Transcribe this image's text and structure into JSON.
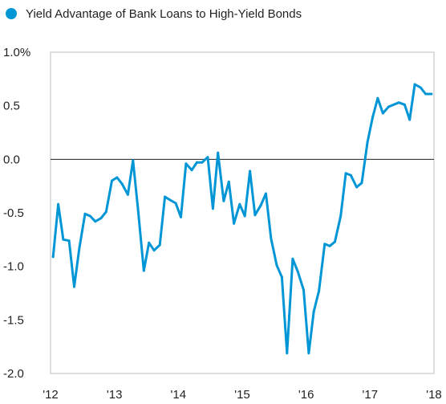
{
  "chart_data": {
    "type": "line",
    "legend": {
      "label": "Yield Advantage of Bank Loans to High-Yield Bonds",
      "color": "#0096d6",
      "placement": "top-left"
    },
    "x_ticks": [
      "'12",
      "'13",
      "'14",
      "'15",
      "'16",
      "'17",
      "'18"
    ],
    "y_ticks": [
      "1.0%",
      "0.5",
      "0.0",
      "-0.5",
      "-1.0",
      "-1.5",
      "-2.0"
    ],
    "ylim": [
      -2.0,
      1.0
    ],
    "xlim": [
      2012,
      2018
    ],
    "zero_line": true,
    "grid": false,
    "series": [
      {
        "name": "Yield Advantage of Bank Loans to High-Yield Bonds",
        "color": "#0096d6",
        "x": [
          2012.04,
          2012.12,
          2012.2,
          2012.29,
          2012.37,
          2012.45,
          2012.54,
          2012.62,
          2012.7,
          2012.79,
          2012.87,
          2012.96,
          2013.04,
          2013.12,
          2013.21,
          2013.29,
          2013.37,
          2013.46,
          2013.54,
          2013.62,
          2013.71,
          2013.79,
          2013.87,
          2013.96,
          2014.04,
          2014.12,
          2014.21,
          2014.29,
          2014.37,
          2014.46,
          2014.54,
          2014.62,
          2014.71,
          2014.79,
          2014.87,
          2014.96,
          2015.04,
          2015.12,
          2015.2,
          2015.29,
          2015.37,
          2015.45,
          2015.54,
          2015.62,
          2015.7,
          2015.79,
          2015.87,
          2015.96,
          2016.04,
          2016.12,
          2016.2,
          2016.29,
          2016.37,
          2016.45,
          2016.54,
          2016.62,
          2016.7,
          2016.79,
          2016.87,
          2016.96,
          2017.04,
          2017.12,
          2017.2,
          2017.29,
          2017.37,
          2017.45,
          2017.54,
          2017.62,
          2017.7,
          2017.79,
          2017.87,
          2017.96
        ],
        "values": [
          -0.91,
          -0.42,
          -0.75,
          -0.76,
          -1.19,
          -0.83,
          -0.51,
          -0.53,
          -0.58,
          -0.55,
          -0.49,
          -0.2,
          -0.17,
          -0.23,
          -0.33,
          -0.01,
          -0.47,
          -1.04,
          -0.78,
          -0.85,
          -0.8,
          -0.35,
          -0.38,
          -0.41,
          -0.54,
          -0.04,
          -0.1,
          -0.03,
          -0.03,
          0.02,
          -0.46,
          0.06,
          -0.39,
          -0.21,
          -0.6,
          -0.42,
          -0.53,
          -0.11,
          -0.52,
          -0.43,
          -0.32,
          -0.74,
          -0.99,
          -1.1,
          -1.81,
          -0.93,
          -1.05,
          -1.22,
          -1.81,
          -1.42,
          -1.23,
          -0.79,
          -0.81,
          -0.77,
          -0.53,
          -0.13,
          -0.15,
          -0.26,
          -0.22,
          0.16,
          0.39,
          0.57,
          0.43,
          0.49,
          0.51,
          0.53,
          0.51,
          0.37,
          0.7,
          0.67,
          0.61,
          0.61
        ]
      }
    ]
  }
}
